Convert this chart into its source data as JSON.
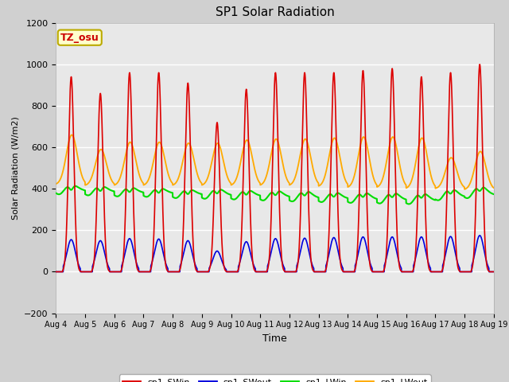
{
  "title": "SP1 Solar Radiation",
  "xlabel": "Time",
  "ylabel": "Solar Radiation (W/m2)",
  "ylim": [
    -200,
    1200
  ],
  "yticks": [
    -200,
    0,
    200,
    400,
    600,
    800,
    1000,
    1200
  ],
  "n_days": 15,
  "x_tick_labels": [
    "Aug 4",
    "Aug 5",
    "Aug 6",
    "Aug 7",
    "Aug 8",
    "Aug 9",
    "Aug 10",
    "Aug 11",
    "Aug 12",
    "Aug 13",
    "Aug 14",
    "Aug 15",
    "Aug 16",
    "Aug 17",
    "Aug 18",
    "Aug 19"
  ],
  "colors": {
    "sp1_SWin": "#dd0000",
    "sp1_SWout": "#0000dd",
    "sp1_LWin": "#00dd00",
    "sp1_LWout": "#ffaa00"
  },
  "annotation_text": "TZ_osu",
  "annotation_color": "#cc0000",
  "annotation_bg": "#ffffcc",
  "annotation_border": "#bbaa00",
  "SWin_peaks": [
    940,
    860,
    960,
    960,
    910,
    720,
    880,
    960,
    960,
    960,
    970,
    980,
    940,
    960,
    1000
  ],
  "SWout_peaks": [
    155,
    150,
    160,
    158,
    150,
    100,
    145,
    160,
    162,
    165,
    168,
    168,
    168,
    170,
    175
  ],
  "LWout_night": [
    420,
    415,
    415,
    415,
    415,
    415,
    415,
    415,
    415,
    410,
    405,
    405,
    400,
    400,
    395
  ],
  "LWout_day_peaks": [
    660,
    590,
    625,
    625,
    620,
    620,
    635,
    640,
    640,
    645,
    650,
    650,
    645,
    550,
    580
  ],
  "LWin_base": [
    390,
    385,
    380,
    378,
    372,
    368,
    365,
    360,
    355,
    352,
    348,
    345,
    342,
    360,
    370
  ],
  "LWin_day_add": [
    30,
    30,
    30,
    28,
    28,
    35,
    32,
    35,
    38,
    35,
    38,
    40,
    40,
    42,
    45
  ]
}
